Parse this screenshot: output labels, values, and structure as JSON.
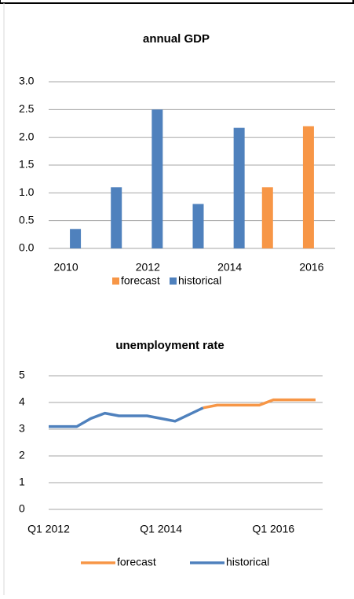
{
  "chart_data": [
    {
      "type": "bar",
      "title": "annual GDP",
      "categories": [
        "2010",
        null,
        "2012",
        null,
        "2014",
        null,
        "2016"
      ],
      "series": [
        {
          "name": "forecast",
          "color": "#f79646",
          "values": [
            null,
            null,
            null,
            null,
            null,
            1.1,
            2.2
          ]
        },
        {
          "name": "historical",
          "color": "#4f81bd",
          "values": [
            0.35,
            1.1,
            2.5,
            0.8,
            2.17,
            null,
            null
          ]
        }
      ],
      "ylim": [
        0,
        3
      ],
      "yticks": [
        {
          "value": 0,
          "label": "0.0"
        },
        {
          "value": 0.5,
          "label": "0.5"
        },
        {
          "value": 1,
          "label": "1.0"
        },
        {
          "value": 1.5,
          "label": "1.5"
        },
        {
          "value": 2,
          "label": "2.0"
        },
        {
          "value": 2.5,
          "label": "2.5"
        },
        {
          "value": 3,
          "label": "3.0"
        }
      ],
      "grid": true,
      "legend": "bottom"
    },
    {
      "type": "line",
      "title": "unemployment rate",
      "categories": [
        "Q1 2012",
        null,
        null,
        null,
        null,
        null,
        null,
        null,
        "Q1 2014",
        null,
        null,
        null,
        null,
        null,
        null,
        null,
        "Q1 2016",
        null,
        null,
        null
      ],
      "series": [
        {
          "name": "forecast",
          "color": "#f79646",
          "values": [
            null,
            null,
            null,
            null,
            null,
            null,
            null,
            null,
            null,
            null,
            null,
            3.8,
            3.9,
            3.9,
            3.9,
            3.9,
            4.1,
            4.1,
            4.1,
            4.1
          ]
        },
        {
          "name": "historical",
          "color": "#4f81bd",
          "values": [
            3.1,
            3.1,
            3.1,
            3.4,
            3.6,
            3.5,
            3.5,
            3.5,
            3.4,
            3.3,
            3.55,
            3.8,
            null,
            null,
            null,
            null,
            null,
            null,
            null,
            null
          ]
        }
      ],
      "ylim": [
        0,
        5
      ],
      "yticks": [
        0,
        1,
        2,
        3,
        4,
        5
      ],
      "grid": true,
      "legend": "bottom"
    }
  ]
}
